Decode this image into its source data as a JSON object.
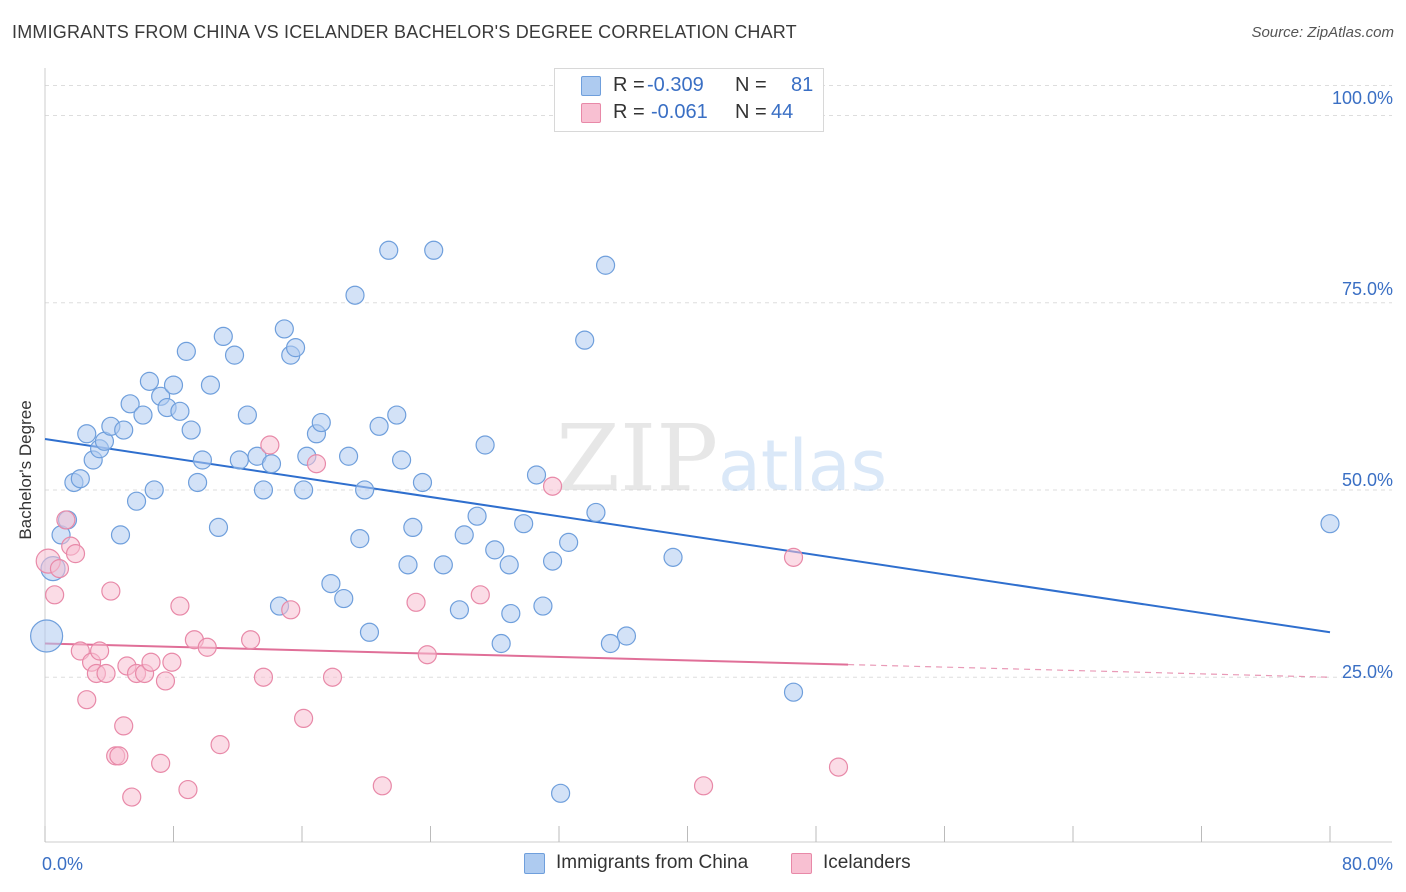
{
  "header": {
    "title": "IMMIGRANTS FROM CHINA VS ICELANDER BACHELOR'S DEGREE CORRELATION CHART",
    "source": "Source: ZipAtlas.com"
  },
  "watermark": {
    "zip": "ZIP",
    "atlas": "atlas"
  },
  "legend": {
    "r_label": "R =",
    "n_label": "N =",
    "series": [
      {
        "name": "Immigrants from China",
        "r": "-0.309",
        "n": "81"
      },
      {
        "name": "Icelanders",
        "r": "-0.061",
        "n": "44"
      }
    ]
  },
  "colors": {
    "blue_fill": "#aecbf0",
    "blue_stroke": "#6f9fdc",
    "blue_line": "#2f6fce",
    "pink_fill": "#f8c0d2",
    "pink_stroke": "#e889a8",
    "pink_line": "#e06f98",
    "tick_text": "#3a6fc4",
    "grid": "#dddddd"
  },
  "chart_data": {
    "type": "scatter",
    "title": "IMMIGRANTS FROM CHINA VS ICELANDER BACHELOR'S DEGREE CORRELATION CHART",
    "xlabel": "",
    "ylabel": "Bachelor's Degree",
    "xlim": [
      0,
      80
    ],
    "ylim": [
      3,
      105
    ],
    "x_tick_labels": [
      "0.0%",
      "80.0%"
    ],
    "y_ticks": [
      25,
      50,
      75,
      100
    ],
    "y_tick_labels": [
      "25.0%",
      "50.0%",
      "75.0%",
      "100.0%"
    ],
    "grid": true,
    "legend_position": "top-center",
    "series": [
      {
        "name": "Immigrants from China",
        "r": -0.309,
        "n": 81,
        "trend": {
          "x": [
            0,
            80
          ],
          "y": [
            56.8,
            31.0
          ],
          "dashed_from": null
        },
        "points": [
          [
            0.1,
            30.5
          ],
          [
            0.5,
            39.5
          ],
          [
            1.0,
            44.0
          ],
          [
            1.4,
            46.0
          ],
          [
            1.8,
            51.0
          ],
          [
            2.2,
            51.5
          ],
          [
            2.6,
            57.5
          ],
          [
            3.0,
            54.0
          ],
          [
            3.4,
            55.5
          ],
          [
            3.7,
            56.5
          ],
          [
            4.1,
            58.5
          ],
          [
            4.7,
            44.0
          ],
          [
            4.9,
            58.0
          ],
          [
            5.3,
            61.5
          ],
          [
            5.7,
            48.5
          ],
          [
            6.1,
            60.0
          ],
          [
            6.5,
            64.5
          ],
          [
            6.8,
            50.0
          ],
          [
            7.2,
            62.5
          ],
          [
            7.6,
            61.0
          ],
          [
            8.0,
            64.0
          ],
          [
            8.4,
            60.5
          ],
          [
            8.8,
            68.5
          ],
          [
            9.1,
            58.0
          ],
          [
            9.5,
            51.0
          ],
          [
            9.8,
            54.0
          ],
          [
            10.3,
            64.0
          ],
          [
            10.8,
            45.0
          ],
          [
            11.1,
            70.5
          ],
          [
            11.8,
            68.0
          ],
          [
            12.1,
            54.0
          ],
          [
            12.6,
            60.0
          ],
          [
            13.2,
            54.5
          ],
          [
            13.6,
            50.0
          ],
          [
            14.1,
            53.5
          ],
          [
            14.6,
            34.5
          ],
          [
            14.9,
            71.5
          ],
          [
            15.3,
            68.0
          ],
          [
            15.6,
            69.0
          ],
          [
            16.1,
            50.0
          ],
          [
            16.3,
            54.5
          ],
          [
            16.9,
            57.5
          ],
          [
            17.2,
            59.0
          ],
          [
            17.8,
            37.5
          ],
          [
            18.6,
            35.5
          ],
          [
            18.9,
            54.5
          ],
          [
            19.3,
            76.0
          ],
          [
            19.6,
            43.5
          ],
          [
            19.9,
            50.0
          ],
          [
            20.2,
            31.0
          ],
          [
            20.8,
            58.5
          ],
          [
            21.4,
            82.0
          ],
          [
            21.9,
            60.0
          ],
          [
            22.2,
            54.0
          ],
          [
            22.6,
            40.0
          ],
          [
            22.9,
            45.0
          ],
          [
            23.5,
            51.0
          ],
          [
            24.2,
            82.0
          ],
          [
            24.8,
            40.0
          ],
          [
            25.8,
            34.0
          ],
          [
            26.1,
            44.0
          ],
          [
            26.9,
            46.5
          ],
          [
            27.4,
            56.0
          ],
          [
            28.0,
            42.0
          ],
          [
            28.4,
            29.5
          ],
          [
            28.9,
            40.0
          ],
          [
            29.0,
            33.5
          ],
          [
            29.8,
            45.5
          ],
          [
            30.6,
            52.0
          ],
          [
            31.0,
            34.5
          ],
          [
            31.6,
            40.5
          ],
          [
            32.1,
            9.5
          ],
          [
            32.6,
            43.0
          ],
          [
            34.3,
            47.0
          ],
          [
            34.9,
            80.0
          ],
          [
            35.2,
            29.5
          ],
          [
            36.2,
            30.5
          ],
          [
            39.1,
            41.0
          ],
          [
            46.6,
            23.0
          ],
          [
            80.0,
            45.5
          ],
          [
            33.6,
            70.0
          ]
        ]
      },
      {
        "name": "Icelanders",
        "r": -0.061,
        "n": 44,
        "trend": {
          "x": [
            0,
            80
          ],
          "y": [
            29.5,
            25.0
          ],
          "dashed_from": 50
        },
        "points": [
          [
            0.2,
            40.5
          ],
          [
            0.6,
            36.0
          ],
          [
            0.9,
            39.5
          ],
          [
            1.3,
            46.0
          ],
          [
            1.6,
            42.5
          ],
          [
            1.9,
            41.5
          ],
          [
            2.2,
            28.5
          ],
          [
            2.6,
            22.0
          ],
          [
            2.9,
            27.0
          ],
          [
            3.2,
            25.5
          ],
          [
            3.4,
            28.5
          ],
          [
            3.8,
            25.5
          ],
          [
            4.1,
            36.5
          ],
          [
            4.4,
            14.5
          ],
          [
            4.6,
            14.5
          ],
          [
            4.9,
            18.5
          ],
          [
            5.1,
            26.5
          ],
          [
            5.4,
            9.0
          ],
          [
            5.7,
            25.5
          ],
          [
            6.2,
            25.5
          ],
          [
            6.6,
            27.0
          ],
          [
            7.2,
            13.5
          ],
          [
            7.5,
            24.5
          ],
          [
            7.9,
            27.0
          ],
          [
            8.4,
            34.5
          ],
          [
            8.9,
            10.0
          ],
          [
            9.3,
            30.0
          ],
          [
            10.1,
            29.0
          ],
          [
            10.9,
            16.0
          ],
          [
            12.8,
            30.0
          ],
          [
            13.6,
            25.0
          ],
          [
            14.0,
            56.0
          ],
          [
            15.3,
            34.0
          ],
          [
            16.1,
            19.5
          ],
          [
            16.9,
            53.5
          ],
          [
            17.9,
            25.0
          ],
          [
            21.0,
            10.5
          ],
          [
            23.1,
            35.0
          ],
          [
            23.8,
            28.0
          ],
          [
            27.1,
            36.0
          ],
          [
            31.6,
            50.5
          ],
          [
            41.0,
            10.5
          ],
          [
            46.6,
            41.0
          ],
          [
            49.4,
            13.0
          ]
        ]
      }
    ]
  }
}
